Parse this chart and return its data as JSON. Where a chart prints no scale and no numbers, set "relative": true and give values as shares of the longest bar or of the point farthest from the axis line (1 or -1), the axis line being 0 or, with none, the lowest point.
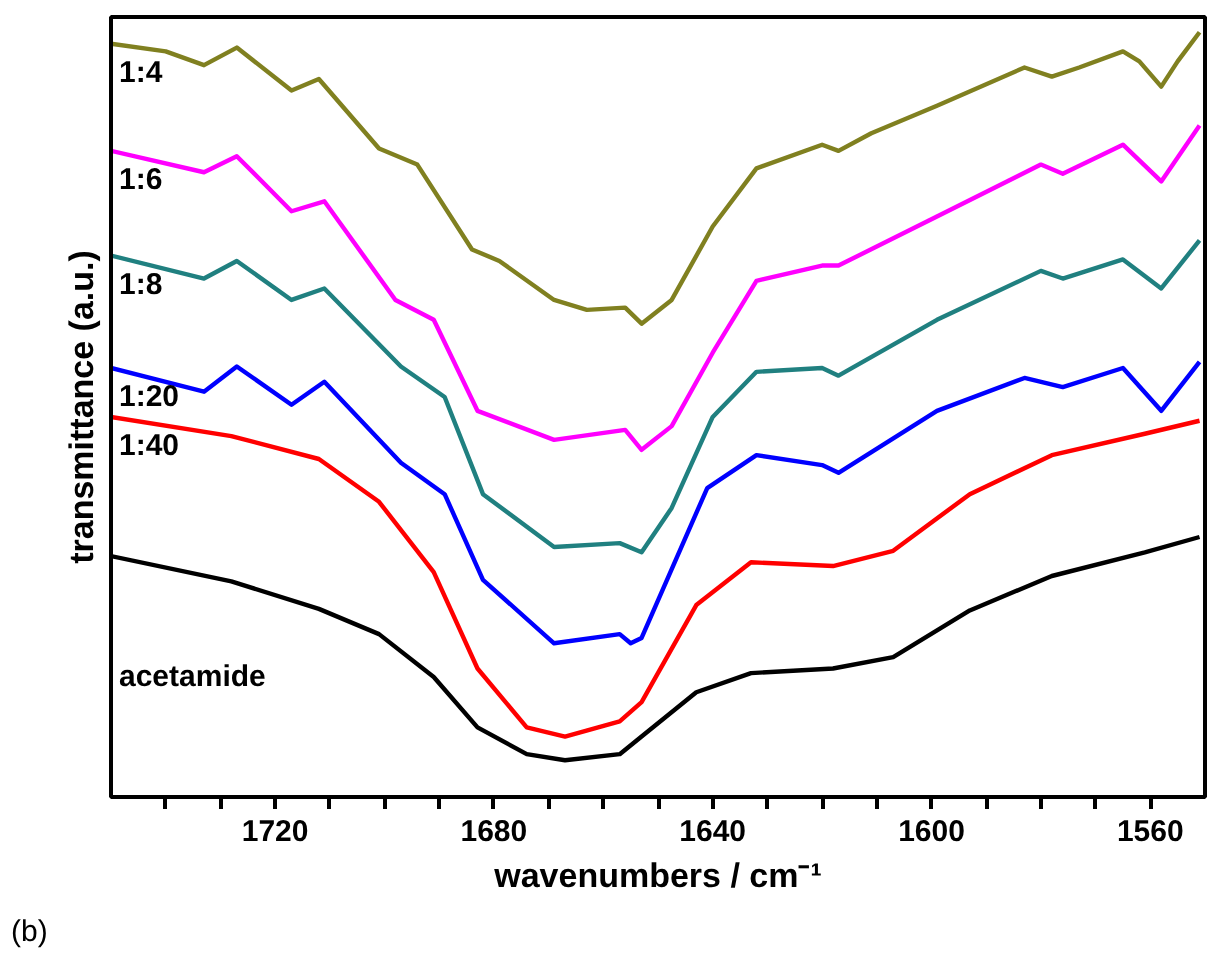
{
  "chart_data": {
    "type": "line",
    "relative": true,
    "xlabel": "wavenumbers / cm⁻¹",
    "ylabel": "transmittance (a.u.)",
    "xlim": [
      1750,
      1550
    ],
    "xticks": [
      {
        "value": 1740,
        "label": null
      },
      {
        "value": 1730,
        "label": null
      },
      1720,
      {
        "value": 1710,
        "label": null
      },
      {
        "value": 1700,
        "label": null
      },
      {
        "value": 1690,
        "label": null
      },
      1680,
      {
        "value": 1670,
        "label": null
      },
      {
        "value": 1660,
        "label": null
      },
      {
        "value": 1650,
        "label": null
      },
      1640,
      {
        "value": 1630,
        "label": null
      },
      {
        "value": 1620,
        "label": null
      },
      {
        "value": 1610,
        "label": null
      },
      1600,
      {
        "value": 1590,
        "label": null
      },
      {
        "value": 1580,
        "label": null
      },
      {
        "value": 1570,
        "label": null
      },
      1560
    ],
    "grid": false,
    "marker": "none",
    "line_style": "solid",
    "annotations": [
      "(b)"
    ],
    "series": [
      {
        "name": "1:4",
        "color": "#808020",
        "x": [
          1750,
          1740,
          1733,
          1727,
          1717,
          1712,
          1701,
          1694,
          1684,
          1679,
          1669,
          1663,
          1656,
          1653,
          1647.5,
          1640,
          1632,
          1620,
          1617,
          1611,
          1599,
          1583,
          1578,
          1573,
          1565,
          1562,
          1558,
          1555,
          1551
        ],
        "values": [
          0.985,
          0.975,
          0.957,
          0.98,
          0.924,
          0.939,
          0.848,
          0.827,
          0.716,
          0.701,
          0.65,
          0.637,
          0.64,
          0.619,
          0.65,
          0.746,
          0.822,
          0.853,
          0.845,
          0.868,
          0.904,
          0.954,
          0.942,
          0.954,
          0.975,
          0.962,
          0.929,
          0.962,
          1.0
        ]
      },
      {
        "name": "1:6",
        "color": "#ff00ff",
        "x": [
          1750,
          1733,
          1727,
          1717,
          1711,
          1698,
          1691,
          1683,
          1669,
          1656,
          1653,
          1647.5,
          1640,
          1632,
          1620,
          1617,
          1599,
          1580,
          1576,
          1565,
          1558,
          1551
        ],
        "values": [
          0.845,
          0.817,
          0.838,
          0.766,
          0.779,
          0.65,
          0.624,
          0.505,
          0.467,
          0.48,
          0.454,
          0.485,
          0.581,
          0.675,
          0.695,
          0.695,
          0.759,
          0.827,
          0.815,
          0.853,
          0.805,
          0.878
        ]
      },
      {
        "name": "1:8",
        "color": "#208080",
        "x": [
          1750,
          1733,
          1727,
          1717,
          1711,
          1697,
          1689,
          1682,
          1669,
          1657,
          1653,
          1647.5,
          1640,
          1632,
          1620,
          1617,
          1599,
          1580,
          1576,
          1565,
          1558,
          1551
        ],
        "values": [
          0.708,
          0.678,
          0.701,
          0.65,
          0.665,
          0.563,
          0.523,
          0.396,
          0.327,
          0.332,
          0.32,
          0.378,
          0.497,
          0.556,
          0.561,
          0.551,
          0.624,
          0.688,
          0.678,
          0.703,
          0.665,
          0.728
        ]
      },
      {
        "name": "1:20",
        "color": "#0000ff",
        "x": [
          1750,
          1733,
          1727,
          1717,
          1711,
          1697,
          1689,
          1682,
          1669,
          1657,
          1655,
          1653,
          1641,
          1632,
          1620,
          1617,
          1599,
          1583,
          1576,
          1565,
          1558,
          1551
        ],
        "values": [
          0.561,
          0.53,
          0.563,
          0.513,
          0.543,
          0.437,
          0.396,
          0.284,
          0.201,
          0.213,
          0.201,
          0.208,
          0.404,
          0.447,
          0.434,
          0.424,
          0.505,
          0.548,
          0.536,
          0.561,
          0.505,
          0.569
        ]
      },
      {
        "name": "1:40",
        "color": "#ff0000",
        "x": [
          1750,
          1728,
          1712,
          1701,
          1691,
          1683,
          1674,
          1667,
          1657,
          1653,
          1643,
          1633,
          1618,
          1607,
          1593,
          1578,
          1561,
          1551
        ],
        "values": [
          0.497,
          0.472,
          0.442,
          0.386,
          0.294,
          0.168,
          0.091,
          0.079,
          0.099,
          0.124,
          0.251,
          0.307,
          0.302,
          0.322,
          0.396,
          0.447,
          0.475,
          0.492
        ]
      },
      {
        "name": "acetamide",
        "color": "#000000",
        "x": [
          1750,
          1728,
          1712,
          1701,
          1691,
          1683,
          1674,
          1667,
          1657,
          1653,
          1643,
          1633,
          1618,
          1607,
          1593,
          1578,
          1561,
          1551
        ],
        "values": [
          0.315,
          0.282,
          0.246,
          0.213,
          0.157,
          0.091,
          0.056,
          0.048,
          0.056,
          0.079,
          0.137,
          0.162,
          0.168,
          0.183,
          0.244,
          0.289,
          0.32,
          0.34
        ]
      }
    ]
  }
}
